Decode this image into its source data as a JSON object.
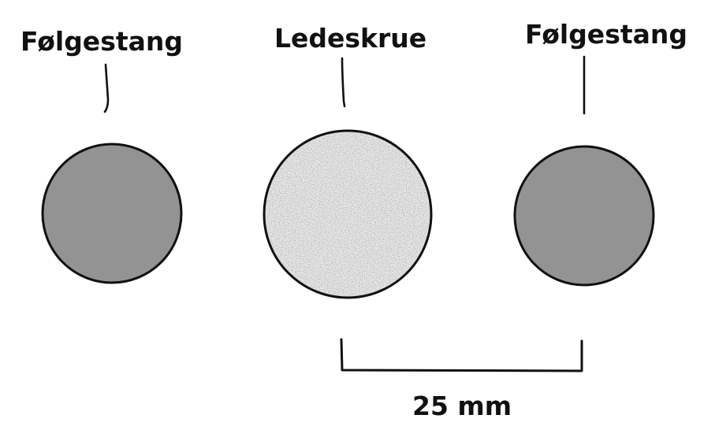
{
  "parts": [
    {
      "id": "left-rod",
      "label": "Følgestang",
      "fill": "#939393"
    },
    {
      "id": "lead-screw",
      "label": "Ledeskrue",
      "fill": "#e9e9e9"
    },
    {
      "id": "right-rod",
      "label": "Følgestang",
      "fill": "#939393"
    }
  ],
  "dimension": {
    "label": "25 mm"
  },
  "colors": {
    "outline": "#111111",
    "rod_fill": "#939393",
    "screw_fill": "#e9e9e9",
    "screw_speckle": "#8a8a8a"
  }
}
